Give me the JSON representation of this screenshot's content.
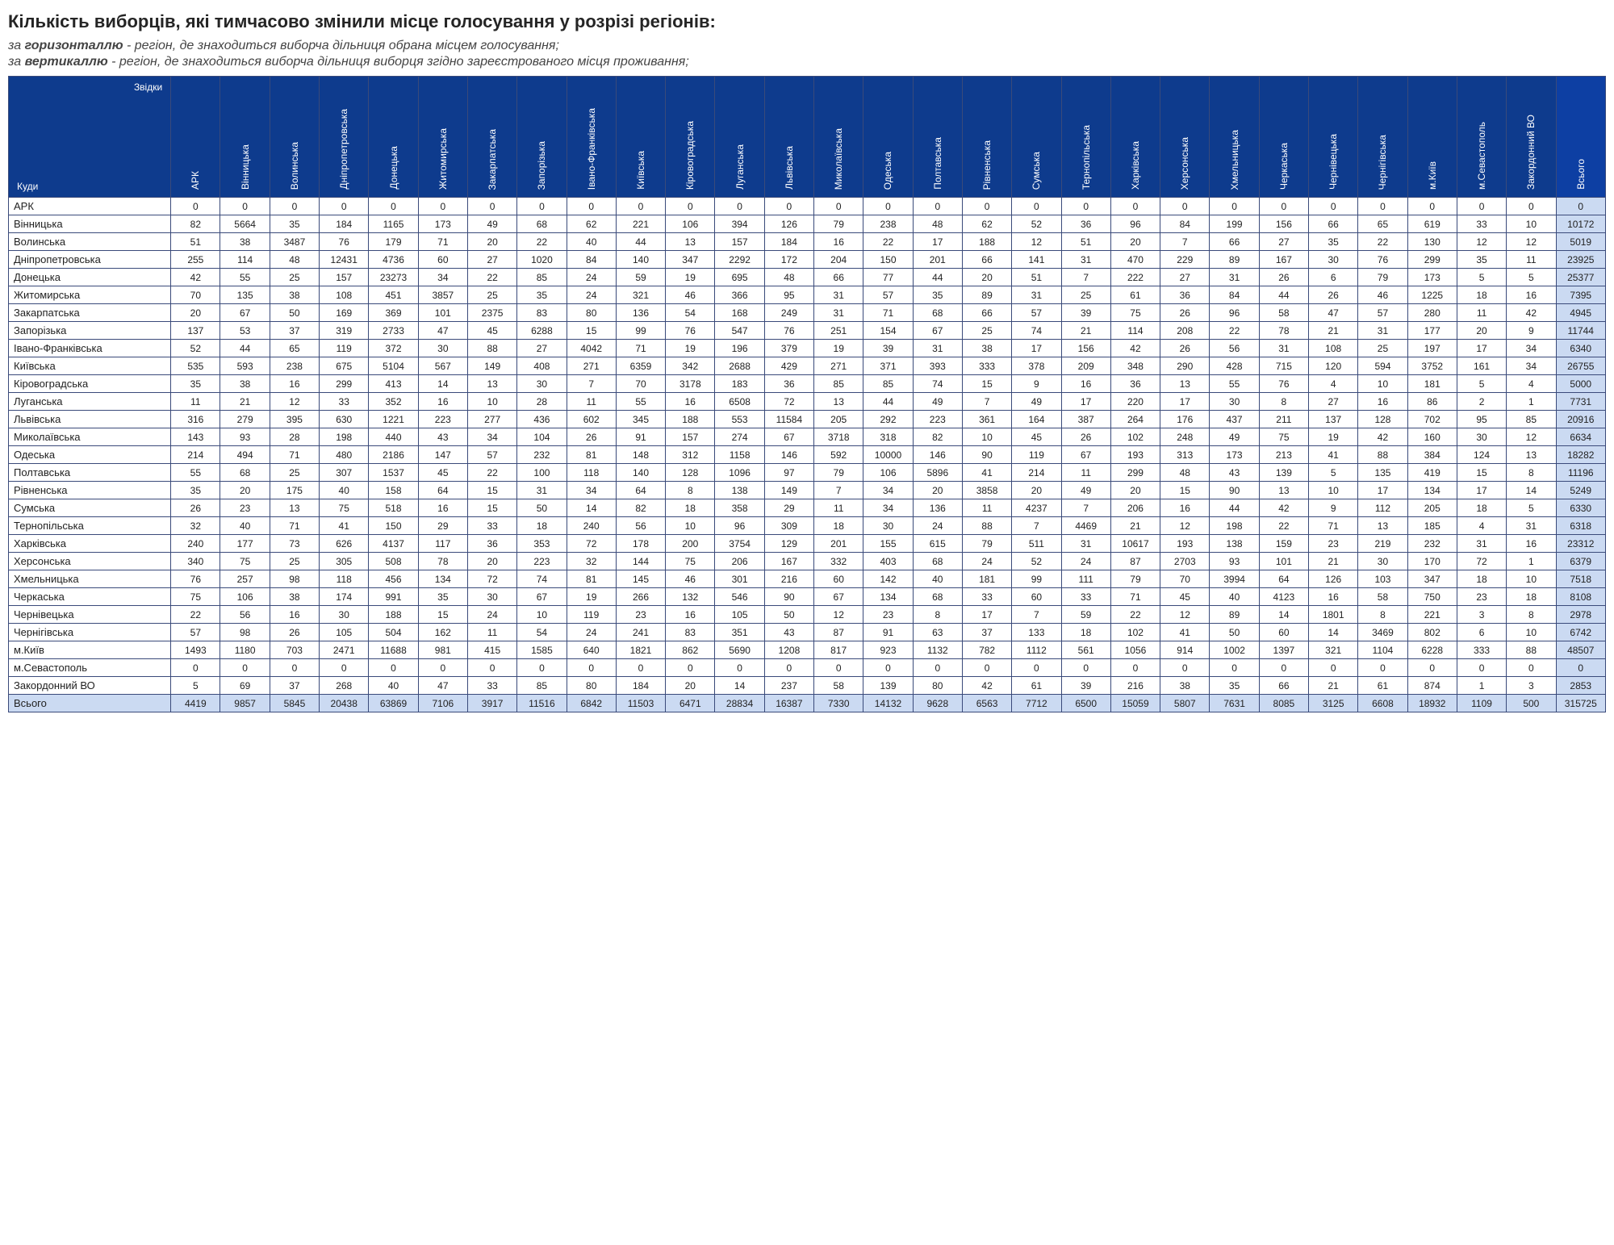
{
  "title": "Кількість виборців, які тимчасово змінили місце голосування у розрізі регіонів:",
  "subtitle1_prefix": "за ",
  "subtitle1_bold": "горизонталлю",
  "subtitle1_rest": " - регіон, де знаходиться виборча дільниця обрана місцем голосування;",
  "subtitle2_prefix": "за ",
  "subtitle2_bold": "вертикаллю",
  "subtitle2_rest": " - регіон, де знаходиться виборча дільниця виборця згідно зареєстрованого місця проживання;",
  "corner_top": "Звідки",
  "corner_bottom": "Куди",
  "colors": {
    "header_bg": "#0e3b8d",
    "header_fg": "#ffffff",
    "total_bg": "#cbdaf2",
    "grand_total_bg": "#bcbcbc",
    "border": "#3a4a7a"
  },
  "columns": [
    "АРК",
    "Вінницька",
    "Волинська",
    "Дніпропетровська",
    "Донецька",
    "Житомирська",
    "Закарпатська",
    "Запорізька",
    "Івано-Франківська",
    "Київська",
    "Кіровоградська",
    "Луганська",
    "Львівська",
    "Миколаївська",
    "Одеська",
    "Полтавська",
    "Рівненська",
    "Сумська",
    "Тернопільська",
    "Харківська",
    "Херсонська",
    "Хмельницька",
    "Черкаська",
    "Чернівецька",
    "Чернігівська",
    "м.Київ",
    "м.Севастополь",
    "Закордонний ВО",
    "Всього"
  ],
  "rows": [
    {
      "label": "АРК",
      "cells": [
        0,
        0,
        0,
        0,
        0,
        0,
        0,
        0,
        0,
        0,
        0,
        0,
        0,
        0,
        0,
        0,
        0,
        0,
        0,
        0,
        0,
        0,
        0,
        0,
        0,
        0,
        0,
        0,
        0
      ]
    },
    {
      "label": "Вінницька",
      "cells": [
        82,
        5664,
        35,
        184,
        1165,
        173,
        49,
        68,
        62,
        221,
        106,
        394,
        126,
        79,
        238,
        48,
        62,
        52,
        36,
        96,
        84,
        199,
        156,
        66,
        65,
        619,
        33,
        10,
        10172
      ]
    },
    {
      "label": "Волинська",
      "cells": [
        51,
        38,
        3487,
        76,
        179,
        71,
        20,
        22,
        40,
        44,
        13,
        157,
        184,
        16,
        22,
        17,
        188,
        12,
        51,
        20,
        7,
        66,
        27,
        35,
        22,
        130,
        12,
        12,
        5019
      ]
    },
    {
      "label": "Дніпропетровська",
      "cells": [
        255,
        114,
        48,
        12431,
        4736,
        60,
        27,
        1020,
        84,
        140,
        347,
        2292,
        172,
        204,
        150,
        201,
        66,
        141,
        31,
        470,
        229,
        89,
        167,
        30,
        76,
        299,
        35,
        11,
        23925
      ]
    },
    {
      "label": "Донецька",
      "cells": [
        42,
        55,
        25,
        157,
        23273,
        34,
        22,
        85,
        24,
        59,
        19,
        695,
        48,
        66,
        77,
        44,
        20,
        51,
        7,
        222,
        27,
        31,
        26,
        6,
        79,
        173,
        5,
        5,
        25377
      ]
    },
    {
      "label": "Житомирська",
      "cells": [
        70,
        135,
        38,
        108,
        451,
        3857,
        25,
        35,
        24,
        321,
        46,
        366,
        95,
        31,
        57,
        35,
        89,
        31,
        25,
        61,
        36,
        84,
        44,
        26,
        46,
        1225,
        18,
        16,
        7395
      ]
    },
    {
      "label": "Закарпатська",
      "cells": [
        20,
        67,
        50,
        169,
        369,
        101,
        2375,
        83,
        80,
        136,
        54,
        168,
        249,
        31,
        71,
        68,
        66,
        57,
        39,
        75,
        26,
        96,
        58,
        47,
        57,
        280,
        11,
        42,
        4945
      ]
    },
    {
      "label": "Запорізька",
      "cells": [
        137,
        53,
        37,
        319,
        2733,
        47,
        45,
        6288,
        15,
        99,
        76,
        547,
        76,
        251,
        154,
        67,
        25,
        74,
        21,
        114,
        208,
        22,
        78,
        21,
        31,
        177,
        20,
        9,
        11744
      ]
    },
    {
      "label": "Івано-Франківська",
      "cells": [
        52,
        44,
        65,
        119,
        372,
        30,
        88,
        27,
        4042,
        71,
        19,
        196,
        379,
        19,
        39,
        31,
        38,
        17,
        156,
        42,
        26,
        56,
        31,
        108,
        25,
        197,
        17,
        34,
        6340
      ]
    },
    {
      "label": "Київська",
      "cells": [
        535,
        593,
        238,
        675,
        5104,
        567,
        149,
        408,
        271,
        6359,
        342,
        2688,
        429,
        271,
        371,
        393,
        333,
        378,
        209,
        348,
        290,
        428,
        715,
        120,
        594,
        3752,
        161,
        34,
        26755
      ]
    },
    {
      "label": "Кіровоградська",
      "cells": [
        35,
        38,
        16,
        299,
        413,
        14,
        13,
        30,
        7,
        70,
        3178,
        183,
        36,
        85,
        85,
        74,
        15,
        9,
        16,
        36,
        13,
        55,
        76,
        4,
        10,
        181,
        5,
        4,
        5000
      ]
    },
    {
      "label": "Луганська",
      "cells": [
        11,
        21,
        12,
        33,
        352,
        16,
        10,
        28,
        11,
        55,
        16,
        6508,
        72,
        13,
        44,
        49,
        7,
        49,
        17,
        220,
        17,
        30,
        8,
        27,
        16,
        86,
        2,
        1,
        7731
      ]
    },
    {
      "label": "Львівська",
      "cells": [
        316,
        279,
        395,
        630,
        1221,
        223,
        277,
        436,
        602,
        345,
        188,
        553,
        11584,
        205,
        292,
        223,
        361,
        164,
        387,
        264,
        176,
        437,
        211,
        137,
        128,
        702,
        95,
        85,
        20916
      ]
    },
    {
      "label": "Миколаївська",
      "cells": [
        143,
        93,
        28,
        198,
        440,
        43,
        34,
        104,
        26,
        91,
        157,
        274,
        67,
        3718,
        318,
        82,
        10,
        45,
        26,
        102,
        248,
        49,
        75,
        19,
        42,
        160,
        30,
        12,
        6634
      ]
    },
    {
      "label": "Одеська",
      "cells": [
        214,
        494,
        71,
        480,
        2186,
        147,
        57,
        232,
        81,
        148,
        312,
        1158,
        146,
        592,
        10000,
        146,
        90,
        119,
        67,
        193,
        313,
        173,
        213,
        41,
        88,
        384,
        124,
        13,
        18282
      ]
    },
    {
      "label": "Полтавська",
      "cells": [
        55,
        68,
        25,
        307,
        1537,
        45,
        22,
        100,
        118,
        140,
        128,
        1096,
        97,
        79,
        106,
        5896,
        41,
        214,
        11,
        299,
        48,
        43,
        139,
        5,
        135,
        419,
        15,
        8,
        11196
      ]
    },
    {
      "label": "Рівненська",
      "cells": [
        35,
        20,
        175,
        40,
        158,
        64,
        15,
        31,
        34,
        64,
        8,
        138,
        149,
        7,
        34,
        20,
        3858,
        20,
        49,
        20,
        15,
        90,
        13,
        10,
        17,
        134,
        17,
        14,
        5249
      ]
    },
    {
      "label": "Сумська",
      "cells": [
        26,
        23,
        13,
        75,
        518,
        16,
        15,
        50,
        14,
        82,
        18,
        358,
        29,
        11,
        34,
        136,
        11,
        4237,
        7,
        206,
        16,
        44,
        42,
        9,
        112,
        205,
        18,
        5,
        6330
      ]
    },
    {
      "label": "Тернопільська",
      "cells": [
        32,
        40,
        71,
        41,
        150,
        29,
        33,
        18,
        240,
        56,
        10,
        96,
        309,
        18,
        30,
        24,
        88,
        7,
        4469,
        21,
        12,
        198,
        22,
        71,
        13,
        185,
        4,
        31,
        6318
      ]
    },
    {
      "label": "Харківська",
      "cells": [
        240,
        177,
        73,
        626,
        4137,
        117,
        36,
        353,
        72,
        178,
        200,
        3754,
        129,
        201,
        155,
        615,
        79,
        511,
        31,
        10617,
        193,
        138,
        159,
        23,
        219,
        232,
        31,
        16,
        23312
      ]
    },
    {
      "label": "Херсонська",
      "cells": [
        340,
        75,
        25,
        305,
        508,
        78,
        20,
        223,
        32,
        144,
        75,
        206,
        167,
        332,
        403,
        68,
        24,
        52,
        24,
        87,
        2703,
        93,
        101,
        21,
        30,
        170,
        72,
        1,
        6379
      ]
    },
    {
      "label": "Хмельницька",
      "cells": [
        76,
        257,
        98,
        118,
        456,
        134,
        72,
        74,
        81,
        145,
        46,
        301,
        216,
        60,
        142,
        40,
        181,
        99,
        111,
        79,
        70,
        3994,
        64,
        126,
        103,
        347,
        18,
        10,
        7518
      ]
    },
    {
      "label": "Черкаська",
      "cells": [
        75,
        106,
        38,
        174,
        991,
        35,
        30,
        67,
        19,
        266,
        132,
        546,
        90,
        67,
        134,
        68,
        33,
        60,
        33,
        71,
        45,
        40,
        4123,
        16,
        58,
        750,
        23,
        18,
        8108
      ]
    },
    {
      "label": "Чернівецька",
      "cells": [
        22,
        56,
        16,
        30,
        188,
        15,
        24,
        10,
        119,
        23,
        16,
        105,
        50,
        12,
        23,
        8,
        17,
        7,
        59,
        22,
        12,
        89,
        14,
        1801,
        8,
        221,
        3,
        8,
        2978
      ]
    },
    {
      "label": "Чернігівська",
      "cells": [
        57,
        98,
        26,
        105,
        504,
        162,
        11,
        54,
        24,
        241,
        83,
        351,
        43,
        87,
        91,
        63,
        37,
        133,
        18,
        102,
        41,
        50,
        60,
        14,
        3469,
        802,
        6,
        10,
        6742
      ]
    },
    {
      "label": "м.Київ",
      "cells": [
        1493,
        1180,
        703,
        2471,
        11688,
        981,
        415,
        1585,
        640,
        1821,
        862,
        5690,
        1208,
        817,
        923,
        1132,
        782,
        1112,
        561,
        1056,
        914,
        1002,
        1397,
        321,
        1104,
        6228,
        333,
        88,
        48507
      ]
    },
    {
      "label": "м.Севастополь",
      "cells": [
        0,
        0,
        0,
        0,
        0,
        0,
        0,
        0,
        0,
        0,
        0,
        0,
        0,
        0,
        0,
        0,
        0,
        0,
        0,
        0,
        0,
        0,
        0,
        0,
        0,
        0,
        0,
        0,
        0
      ]
    },
    {
      "label": "Закордонний ВО",
      "cells": [
        5,
        69,
        37,
        268,
        40,
        47,
        33,
        85,
        80,
        184,
        20,
        14,
        237,
        58,
        139,
        80,
        42,
        61,
        39,
        216,
        38,
        35,
        66,
        21,
        61,
        874,
        1,
        3,
        2853
      ]
    },
    {
      "label": "Всього",
      "cells": [
        4419,
        9857,
        5845,
        20438,
        63869,
        7106,
        3917,
        11516,
        6842,
        11503,
        6471,
        28834,
        16387,
        7330,
        14132,
        9628,
        6563,
        7712,
        6500,
        15059,
        5807,
        7631,
        8085,
        3125,
        6608,
        18932,
        1109,
        500,
        315725
      ],
      "total": true
    }
  ]
}
